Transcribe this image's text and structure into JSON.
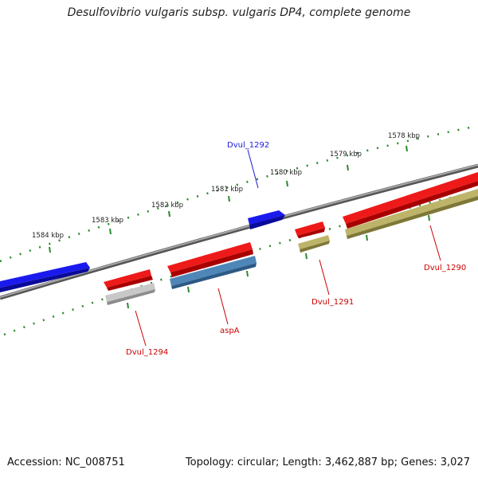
{
  "title": "Desulfovibrio vulgaris subsp. vulgaris DP4, complete genome",
  "footer": {
    "accession": "Accession: NC_008751",
    "summary": "Topology: circular; Length: 3,462,887 bp; Genes: 3,027"
  },
  "colors": {
    "backbone": "#888888",
    "ticks": "#2a8a2a",
    "forward_gene": "#1010ee",
    "reverse_gene": "#ee1111",
    "cds_gold": "#b8b06a",
    "cds_blue": "#4f86b8",
    "cds_gray": "#c8c8c8",
    "label_blue": "#1a1adb",
    "label_red": "#cc0000"
  },
  "scale_labels": [
    "1584 kbp",
    "1583 kbp",
    "1582 kbp",
    "1581 kbp",
    "1580 kbp",
    "1579 kbp",
    "1578 kbp"
  ],
  "gene_labels": {
    "dvul_1292": "Dvul_1292",
    "dvul_1294": "Dvul_1294",
    "aspA": "aspA",
    "dvul_1291": "Dvul_1291",
    "dvul_1290": "Dvul_1290"
  }
}
